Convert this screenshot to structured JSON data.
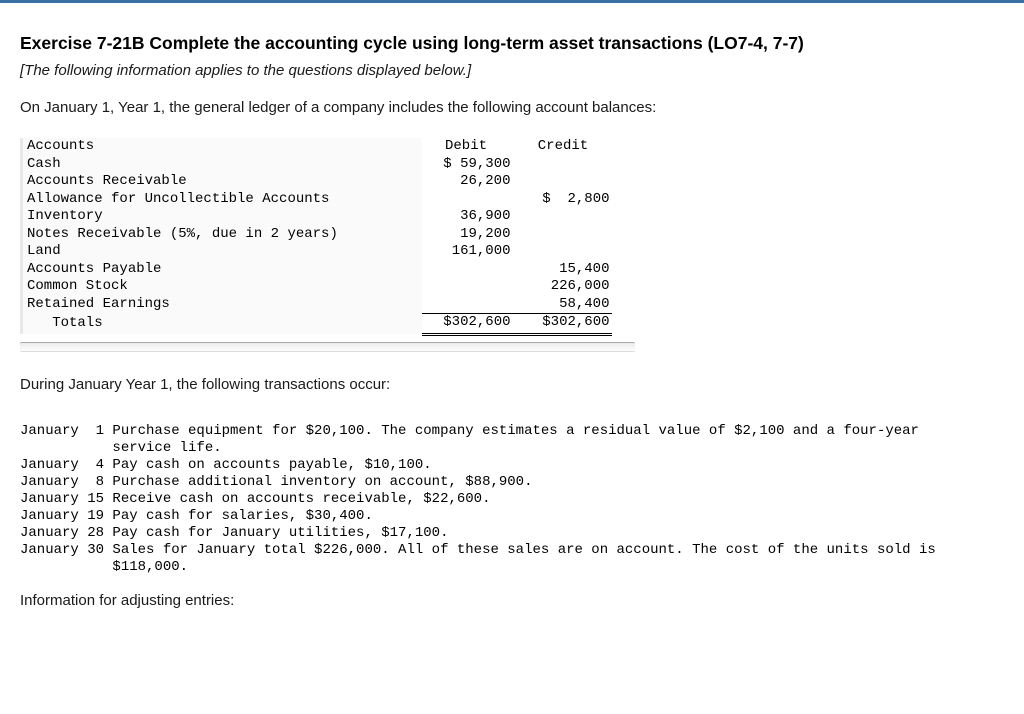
{
  "header": {
    "title": "Exercise 7-21B Complete the accounting cycle using long-term asset transactions (LO7-4, 7-7)",
    "subtitle": "[The following information applies to the questions displayed below.]",
    "intro": "On January 1, Year 1, the general ledger of a company includes the following account balances:"
  },
  "ledger": {
    "col_account": "Accounts",
    "col_debit": "Debit",
    "col_credit": "Credit",
    "rows": [
      {
        "a": "Cash",
        "d": "$ 59,300",
        "c": ""
      },
      {
        "a": "Accounts Receivable",
        "d": "26,200",
        "c": ""
      },
      {
        "a": "Allowance for Uncollectible Accounts",
        "d": "",
        "c": "$  2,800"
      },
      {
        "a": "Inventory",
        "d": "36,900",
        "c": ""
      },
      {
        "a": "Notes Receivable (5%, due in 2 years)",
        "d": "19,200",
        "c": ""
      },
      {
        "a": "Land",
        "d": "161,000",
        "c": ""
      },
      {
        "a": "Accounts Payable",
        "d": "",
        "c": "15,400"
      },
      {
        "a": "Common Stock",
        "d": "",
        "c": "226,000"
      },
      {
        "a": "Retained Earnings",
        "d": "",
        "c": "58,400"
      }
    ],
    "totals": {
      "a": "   Totals",
      "d": "$302,600",
      "c": "$302,600"
    }
  },
  "mid": {
    "para": "During January Year 1, the following transactions occur:"
  },
  "transactions": {
    "lines": [
      "January  1 Purchase equipment for $20,100. The company estimates a residual value of $2,100 and a four-year",
      "           service life.",
      "January  4 Pay cash on accounts payable, $10,100.",
      "January  8 Purchase additional inventory on account, $88,900.",
      "January 15 Receive cash on accounts receivable, $22,600.",
      "January 19 Pay cash for salaries, $30,400.",
      "January 28 Pay cash for January utilities, $17,100.",
      "January 30 Sales for January total $226,000. All of these sales are on account. The cost of the units sold is",
      "           $118,000."
    ]
  },
  "footer": {
    "info": "Information for adjusting entries:"
  },
  "style": {
    "top_border_color": "#3a6ea5",
    "mono_font": "Courier New",
    "body_font": "Arial",
    "bg": "#ffffff",
    "row_shade": "#fafafa",
    "row_border": "#e8e8e8"
  }
}
